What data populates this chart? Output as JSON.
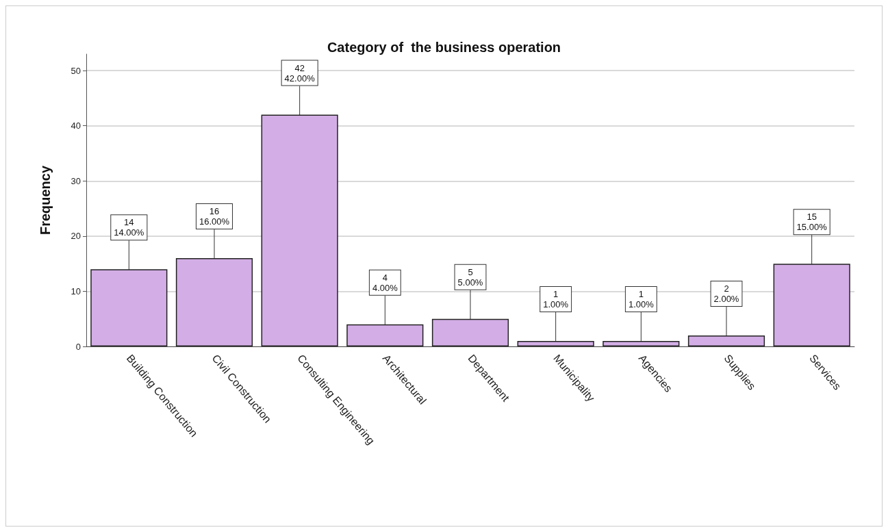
{
  "chart_data": {
    "type": "bar",
    "title": "Category of  the business operation",
    "ylabel": "Frequency",
    "categories": [
      "Building Construction",
      "Civil Construction",
      "Consulting Engineering",
      "Architectural",
      "Department",
      "Municipality",
      "Agencies",
      "Supplies",
      "Services"
    ],
    "values": [
      14,
      16,
      42,
      4,
      5,
      1,
      1,
      2,
      15
    ],
    "value_labels": [
      "14\n14.00%",
      "16\n16.00%",
      "42\n42.00%",
      "4\n4.00%",
      "5\n5.00%",
      "1\n1.00%",
      "1\n1.00%",
      "2\n2.00%",
      "15\n15.00%"
    ],
    "color": "#d3aee6",
    "ylim": [
      0,
      53
    ],
    "yticks": [
      0,
      10,
      20,
      30,
      40,
      50
    ],
    "grid": "y"
  }
}
